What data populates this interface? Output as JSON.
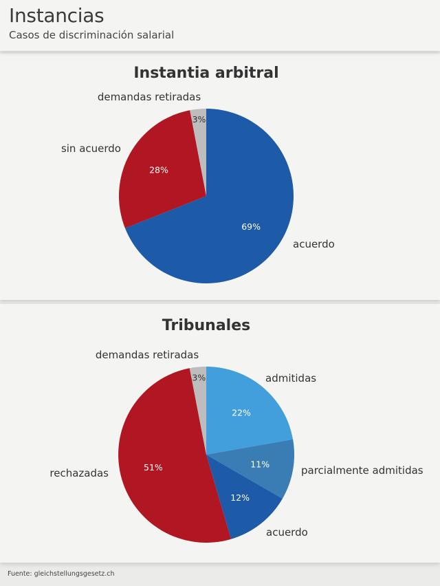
{
  "header": {
    "title": "Instancias",
    "subtitle": "Casos de discriminación salarial"
  },
  "footer": {
    "source": "Fuente: gleichstellungsgesetz.ch"
  },
  "chart_data": [
    {
      "type": "pie",
      "title": "Instantia arbitral",
      "start_angle_deg": 0,
      "direction": "clockwise",
      "slices": [
        {
          "label": "acuerdo",
          "value": 69,
          "value_label": "69%",
          "color": "#1d5aa8",
          "text_color": "#ffffff"
        },
        {
          "label": "sin acuerdo",
          "value": 28,
          "value_label": "28%",
          "color": "#b01722",
          "text_color": "#ffffff"
        },
        {
          "label": "demandas retiradas",
          "value": 3,
          "value_label": "3%",
          "color": "#bdbdbd",
          "text_color": "#333333"
        }
      ]
    },
    {
      "type": "pie",
      "title": "Tribunales",
      "start_angle_deg": 0,
      "direction": "clockwise",
      "slices": [
        {
          "label": "admitidas",
          "value": 22,
          "value_label": "22%",
          "color": "#429fdb",
          "text_color": "#ffffff"
        },
        {
          "label": "parcialmente admitidas",
          "value": 11,
          "value_label": "11%",
          "color": "#3a7db5",
          "text_color": "#ffffff"
        },
        {
          "label": "acuerdo",
          "value": 12,
          "value_label": "12%",
          "color": "#1d5aa8",
          "text_color": "#ffffff"
        },
        {
          "label": "rechazadas",
          "value": 51,
          "value_label": "51%",
          "color": "#b01722",
          "text_color": "#ffffff"
        },
        {
          "label": "demandas retiradas",
          "value": 3,
          "value_label": "3%",
          "color": "#bdbdbd",
          "text_color": "#333333"
        }
      ]
    }
  ]
}
